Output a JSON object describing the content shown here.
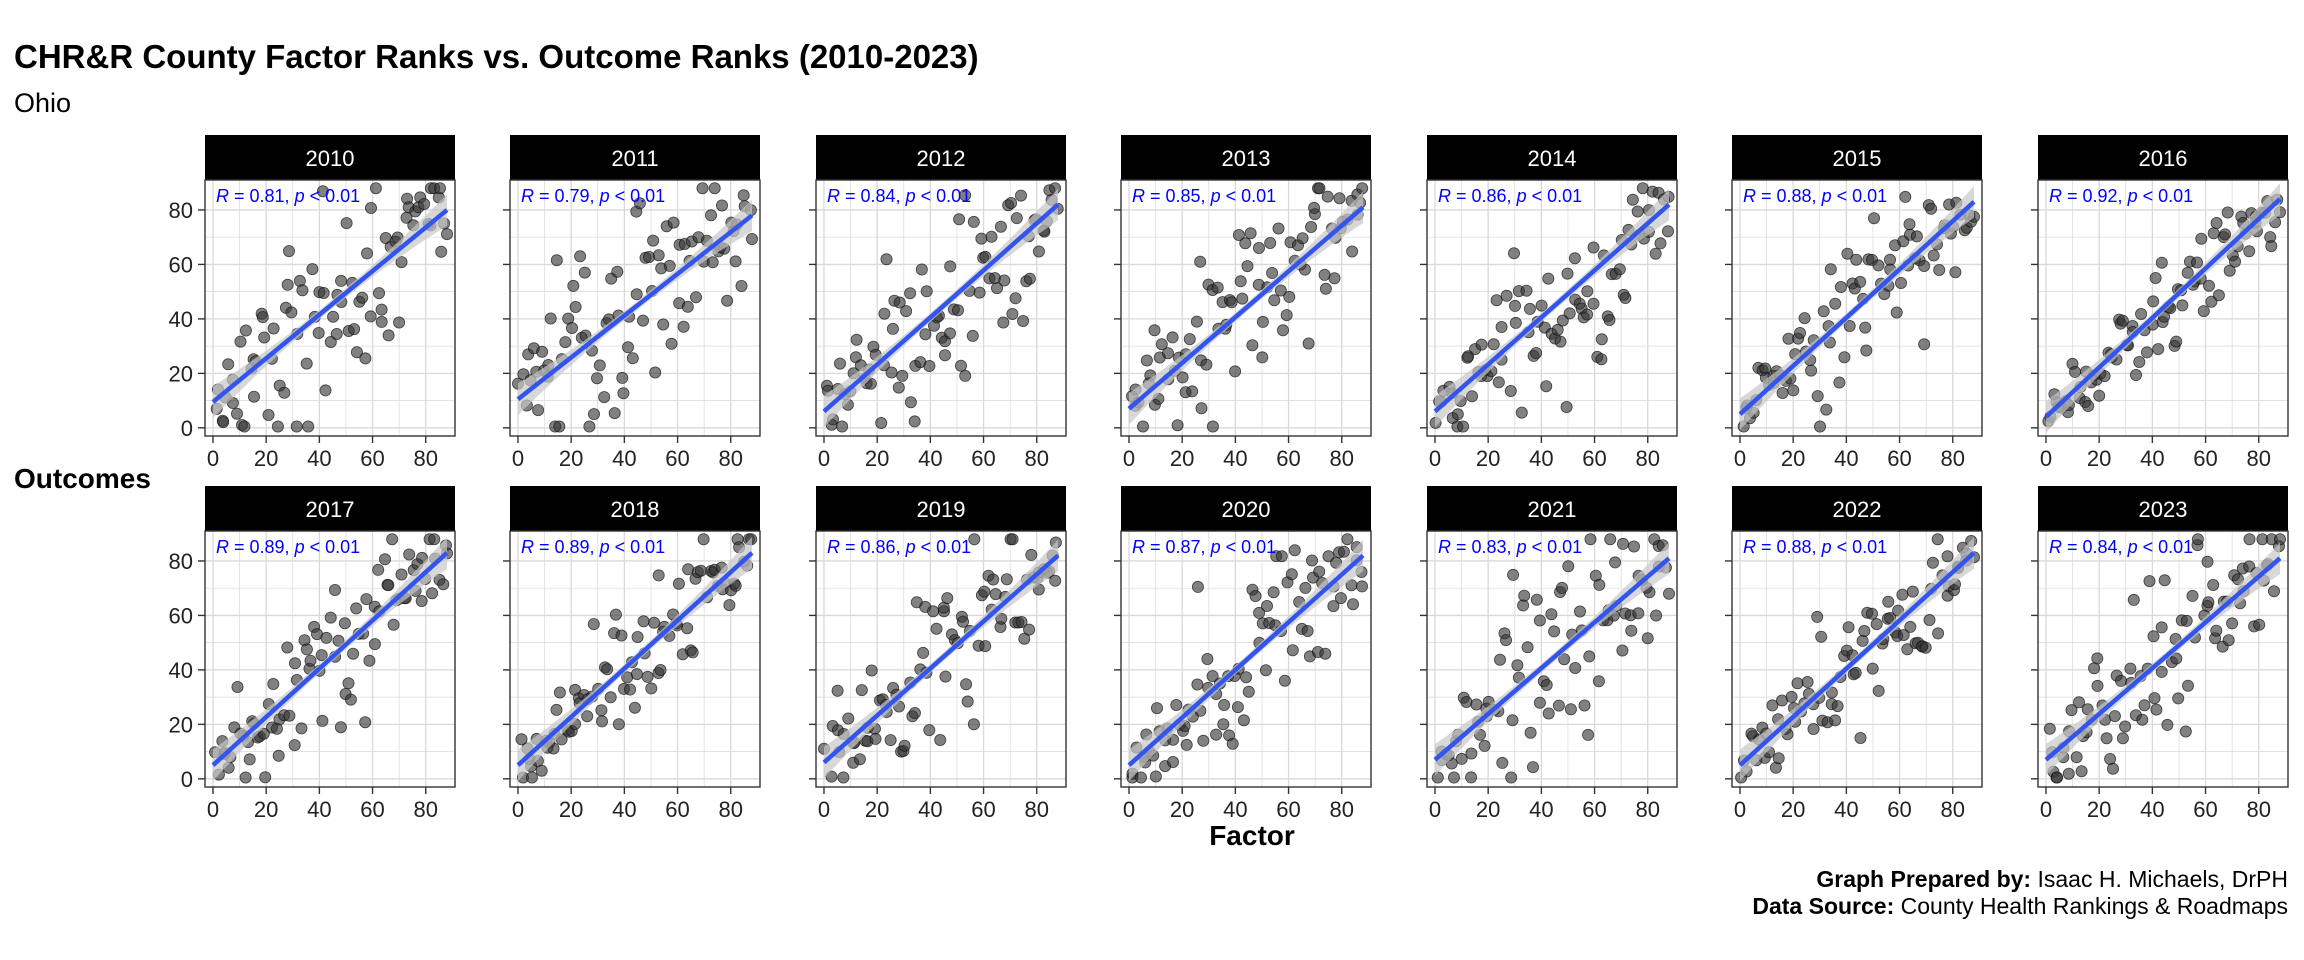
{
  "title": "CHR&R County Factor Ranks vs. Outcome Ranks (2010-2023)",
  "subtitle": "Ohio",
  "credits": {
    "prepared_label": "Graph Prepared by:",
    "prepared_value": "Isaac H. Michaels, DrPH",
    "source_label": "Data Source:",
    "source_value": "County Health Rankings & Roadmaps"
  },
  "colors": {
    "strip_bg": "#000000",
    "strip_text": "#ffffff",
    "point": "#333333",
    "fit_line": "#3355ee",
    "ci_band": "#c8c8c8",
    "grid": "#d9d9d9",
    "annotation": "#0000ff"
  },
  "chart_data": {
    "type": "scatter",
    "layout": "facet_wrap",
    "facet_rows": 2,
    "facet_cols": 7,
    "xlabel": "Factor",
    "ylabel": "Outcomes",
    "xlim": [
      0,
      88
    ],
    "ylim": [
      0,
      88
    ],
    "x_ticks": [
      0,
      20,
      40,
      60,
      80
    ],
    "y_ticks": [
      0,
      20,
      40,
      60,
      80
    ],
    "grid": true,
    "fit": "linear regression with confidence band",
    "annotation_template": {
      "r_label": "R = ",
      "sep": ", ",
      "p_label": "p",
      "p_op": " < ",
      "p_value": "0.01"
    },
    "n_counties": 88,
    "panels": [
      {
        "year": "2010",
        "r": "0.81",
        "fit": [
          [
            0,
            9.5
          ],
          [
            88,
            80
          ]
        ]
      },
      {
        "year": "2011",
        "r": "0.79",
        "fit": [
          [
            0,
            10.5
          ],
          [
            88,
            78
          ]
        ]
      },
      {
        "year": "2012",
        "r": "0.84",
        "fit": [
          [
            0,
            6
          ],
          [
            88,
            82
          ]
        ]
      },
      {
        "year": "2013",
        "r": "0.85",
        "fit": [
          [
            0,
            7
          ],
          [
            88,
            81
          ]
        ]
      },
      {
        "year": "2014",
        "r": "0.86",
        "fit": [
          [
            0,
            6
          ],
          [
            88,
            82
          ]
        ]
      },
      {
        "year": "2015",
        "r": "0.88",
        "fit": [
          [
            0,
            5
          ],
          [
            88,
            83
          ]
        ]
      },
      {
        "year": "2016",
        "r": "0.92",
        "fit": [
          [
            0,
            4
          ],
          [
            88,
            84
          ]
        ]
      },
      {
        "year": "2017",
        "r": "0.89",
        "fit": [
          [
            0,
            5
          ],
          [
            88,
            83
          ]
        ]
      },
      {
        "year": "2018",
        "r": "0.89",
        "fit": [
          [
            0,
            5
          ],
          [
            88,
            83
          ]
        ]
      },
      {
        "year": "2019",
        "r": "0.86",
        "fit": [
          [
            0,
            6
          ],
          [
            88,
            82
          ]
        ]
      },
      {
        "year": "2020",
        "r": "0.87",
        "fit": [
          [
            0,
            5
          ],
          [
            88,
            82
          ]
        ]
      },
      {
        "year": "2021",
        "r": "0.83",
        "fit": [
          [
            0,
            7
          ],
          [
            88,
            81
          ]
        ]
      },
      {
        "year": "2022",
        "r": "0.88",
        "fit": [
          [
            0,
            5
          ],
          [
            88,
            83
          ]
        ]
      },
      {
        "year": "2023",
        "r": "0.84",
        "fit": [
          [
            0,
            7
          ],
          [
            88,
            81
          ]
        ]
      }
    ]
  }
}
